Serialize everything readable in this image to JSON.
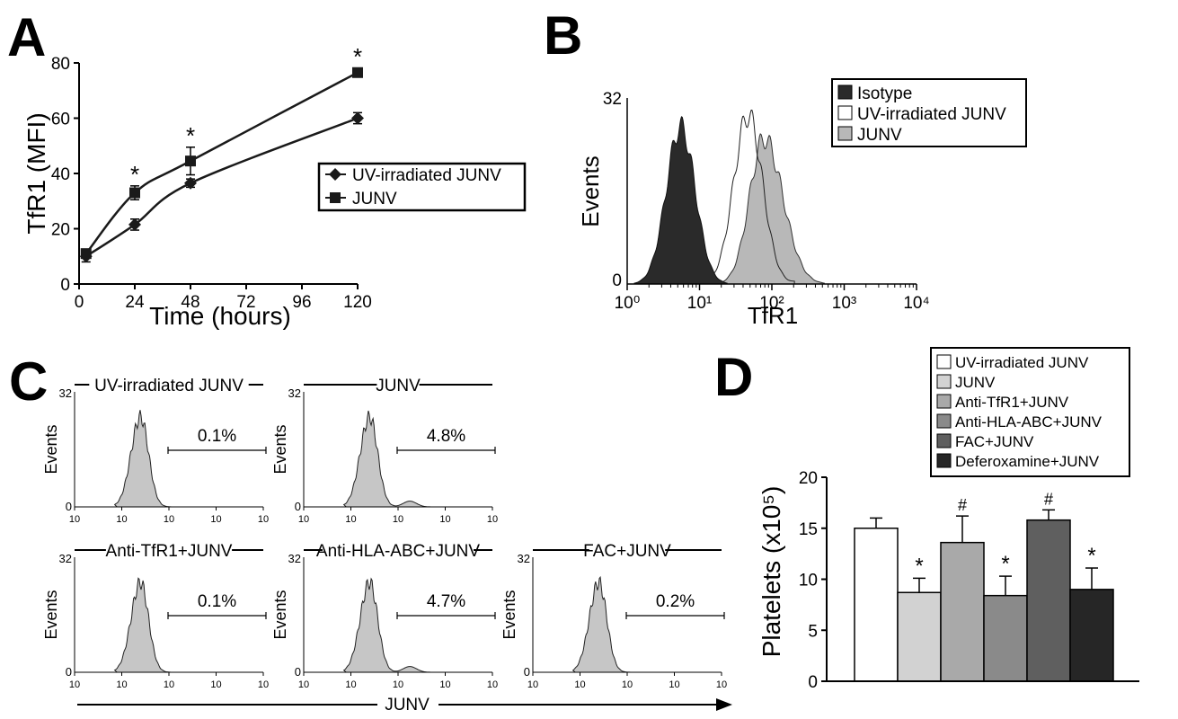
{
  "panel_letters": [
    "A",
    "B",
    "C",
    "D"
  ],
  "chart_data": [
    {
      "panel": "A",
      "type": "line",
      "xlabel": "Time (hours)",
      "ylabel": "TfR1 (MFI)",
      "xlim": [
        0,
        120
      ],
      "ylim": [
        0,
        80
      ],
      "xticks": [
        0,
        24,
        48,
        72,
        96,
        120
      ],
      "yticks": [
        0,
        20,
        40,
        60,
        80
      ],
      "legend_position": "right",
      "series": [
        {
          "name": "UV-irradiated JUNV",
          "marker": "diamond",
          "x": [
            3,
            24,
            48,
            120
          ],
          "y": [
            10,
            21.5,
            36.5,
            60
          ],
          "err": [
            2,
            2,
            1.5,
            2
          ]
        },
        {
          "name": "JUNV",
          "marker": "square",
          "x": [
            3,
            24,
            48,
            120
          ],
          "y": [
            11,
            33,
            44.5,
            76.5
          ],
          "err": [
            1.5,
            2.5,
            5,
            1.5
          ]
        }
      ],
      "annotations": [
        {
          "x": 24,
          "text": "*"
        },
        {
          "x": 48,
          "text": "*"
        },
        {
          "x": 120,
          "text": "*"
        }
      ]
    },
    {
      "panel": "B",
      "type": "area",
      "xlabel": "TfR1",
      "ylabel": "Events",
      "xscale": "log",
      "xlim": [
        1,
        10000
      ],
      "ylim": [
        0,
        32
      ],
      "xtick_labels": [
        "10⁰",
        "10¹",
        "10²",
        "10³",
        "10⁴"
      ],
      "ytick_labels": [
        "0",
        "32"
      ],
      "legend_position": "top-right",
      "series": [
        {
          "name": "Isotype",
          "fill": "#2a2a2a",
          "peak_x": 5.5,
          "peak_y": 27
        },
        {
          "name": "UV-irradiated JUNV",
          "fill": "#ffffff",
          "peak_x": 47,
          "peak_y": 29
        },
        {
          "name": "JUNV",
          "fill": "#b8b8b8",
          "peak_x": 78,
          "peak_y": 25
        }
      ]
    },
    {
      "panel": "C",
      "type": "area",
      "ylabel": "Events",
      "ytick_labels": [
        "0",
        "32"
      ],
      "xtick_label": "10",
      "bottom_label": "JUNV",
      "histograms": [
        {
          "title": "UV-irradiated JUNV",
          "percent": "0.1%",
          "tail": false
        },
        {
          "title": "JUNV",
          "percent": "4.8%",
          "tail": true
        },
        {
          "title": "Anti-TfR1+JUNV",
          "percent": "0.1%",
          "tail": false
        },
        {
          "title": "Anti-HLA-ABC+JUNV",
          "percent": "4.7%",
          "tail": true
        },
        {
          "title": "FAC+JUNV",
          "percent": "0.2%",
          "tail": false
        }
      ]
    },
    {
      "panel": "D",
      "type": "bar",
      "ylabel": "Platelets (x10⁵)",
      "ylim": [
        0,
        20
      ],
      "yticks": [
        0,
        5,
        10,
        15,
        20
      ],
      "legend_position": "top",
      "categories": [
        "UV-irradiated JUNV",
        "JUNV",
        "Anti-TfR1+JUNV",
        "Anti-HLA-ABC+JUNV",
        "FAC+JUNV",
        "Deferoxamine+JUNV"
      ],
      "values": [
        15,
        8.7,
        13.6,
        8.4,
        15.8,
        9
      ],
      "errors": [
        1,
        1.4,
        2.6,
        1.9,
        1,
        2.1
      ],
      "colors": [
        "#ffffff",
        "#d2d2d2",
        "#a9a9a9",
        "#8a8a8a",
        "#5f5f5f",
        "#262626"
      ],
      "marks": [
        "",
        "*",
        "#",
        "*",
        "#",
        "*"
      ]
    }
  ]
}
